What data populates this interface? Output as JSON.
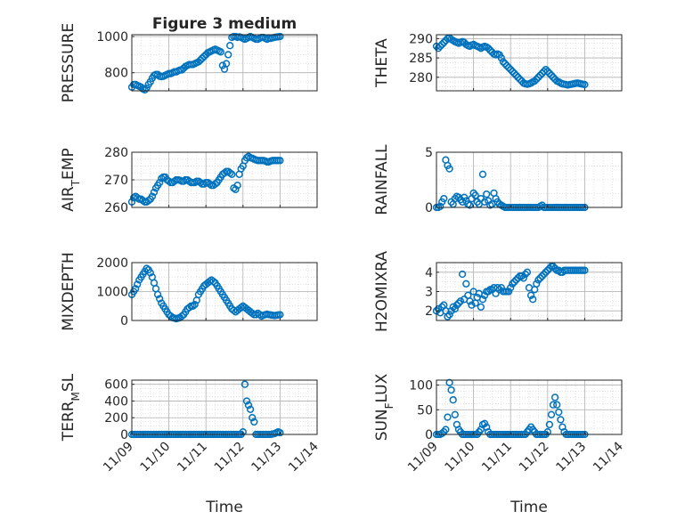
{
  "figure": {
    "title": "Figure 3 medium",
    "colors": {
      "marker": "#0072BD",
      "axis": "#262626",
      "grid": "#b0b0b0"
    }
  },
  "x_axis": {
    "label": "Time",
    "ticks": [
      "11/09",
      "11/10",
      "11/11",
      "11/12",
      "11/13",
      "11/14"
    ]
  },
  "chart_data": [
    {
      "type": "scatter",
      "ylabel": "PRESSURE",
      "ylim": [
        700,
        1010
      ],
      "yticks": [
        800,
        1000
      ],
      "grid": true,
      "x": [
        0.0,
        0.05,
        0.1,
        0.15,
        0.2,
        0.25,
        0.3,
        0.35,
        0.4,
        0.45,
        0.5,
        0.55,
        0.6,
        0.65,
        0.7,
        0.75,
        0.8,
        0.85,
        0.9,
        0.95,
        1.0,
        1.05,
        1.1,
        1.15,
        1.2,
        1.25,
        1.3,
        1.35,
        1.4,
        1.45,
        1.5,
        1.55,
        1.6,
        1.65,
        1.7,
        1.75,
        1.8,
        1.85,
        1.9,
        1.95,
        2.0,
        2.05,
        2.1,
        2.15,
        2.2,
        2.25,
        2.3,
        2.35,
        2.4,
        2.45,
        2.5,
        2.55,
        2.6,
        2.65,
        2.7,
        2.75,
        2.8,
        2.85,
        2.9,
        2.95,
        3.0,
        3.05,
        3.1,
        3.15,
        3.2,
        3.25,
        3.3,
        3.35,
        3.4,
        3.45,
        3.5,
        3.55,
        3.6,
        3.65,
        3.7,
        3.75,
        3.8,
        3.85,
        3.9,
        3.95,
        4.0
      ],
      "y": [
        720,
        735,
        735,
        730,
        725,
        720,
        710,
        705,
        715,
        735,
        750,
        770,
        785,
        790,
        790,
        780,
        778,
        780,
        785,
        790,
        795,
        795,
        800,
        805,
        805,
        810,
        815,
        815,
        825,
        835,
        840,
        845,
        845,
        845,
        850,
        855,
        860,
        870,
        880,
        890,
        900,
        910,
        915,
        920,
        925,
        930,
        925,
        920,
        915,
        840,
        820,
        850,
        900,
        950,
        995,
        1000,
        1000,
        995,
        998,
        995,
        990,
        985,
        990,
        995,
        1000,
        995,
        990,
        985,
        985,
        990,
        995,
        995,
        990,
        985,
        990,
        990,
        993,
        995,
        997,
        998,
        1000
      ]
    },
    {
      "type": "scatter",
      "ylabel": "THETA",
      "ylim": [
        276.5,
        291
      ],
      "yticks": [
        280,
        285,
        290
      ],
      "grid": true,
      "x": [
        0.0,
        0.05,
        0.1,
        0.15,
        0.2,
        0.25,
        0.3,
        0.35,
        0.4,
        0.45,
        0.5,
        0.55,
        0.6,
        0.65,
        0.7,
        0.75,
        0.8,
        0.85,
        0.9,
        0.95,
        1.0,
        1.05,
        1.1,
        1.15,
        1.2,
        1.25,
        1.3,
        1.35,
        1.4,
        1.45,
        1.5,
        1.55,
        1.6,
        1.65,
        1.7,
        1.75,
        1.8,
        1.85,
        1.9,
        1.95,
        2.0,
        2.05,
        2.1,
        2.15,
        2.2,
        2.25,
        2.3,
        2.35,
        2.4,
        2.45,
        2.5,
        2.55,
        2.6,
        2.65,
        2.7,
        2.75,
        2.8,
        2.85,
        2.9,
        2.95,
        3.0,
        3.05,
        3.1,
        3.15,
        3.2,
        3.25,
        3.3,
        3.35,
        3.4,
        3.45,
        3.5,
        3.55,
        3.6,
        3.65,
        3.7,
        3.75,
        3.8,
        3.85,
        3.9,
        3.95,
        4.0
      ],
      "y": [
        288,
        287.5,
        288,
        288.5,
        289,
        289.5,
        290,
        290.2,
        289.8,
        289.5,
        289.2,
        289,
        288.8,
        289,
        289.2,
        289,
        288.5,
        288.2,
        288,
        288.3,
        288.5,
        288.2,
        288,
        287.8,
        287.5,
        287.8,
        288,
        287.8,
        287.5,
        287,
        286.5,
        286,
        285.8,
        286,
        285.8,
        285,
        284,
        283.5,
        283,
        282.5,
        282,
        281.5,
        281,
        280.5,
        280,
        279.5,
        279,
        278.5,
        278.3,
        278.2,
        278.3,
        278.5,
        278.8,
        279,
        279.5,
        280,
        280.5,
        281,
        281.5,
        282,
        281.5,
        281,
        280.5,
        280,
        279.5,
        279,
        278.8,
        278.5,
        278.3,
        278.2,
        278.1,
        278,
        278.1,
        278.2,
        278.3,
        278.4,
        278.5,
        278.4,
        278.3,
        278.2,
        278.1
      ]
    },
    {
      "type": "scatter",
      "ylabel": "AIR_TEMP",
      "ylim": [
        260,
        280
      ],
      "yticks": [
        260,
        270,
        280
      ],
      "grid": true,
      "x": [
        0.0,
        0.05,
        0.1,
        0.15,
        0.2,
        0.25,
        0.3,
        0.35,
        0.4,
        0.45,
        0.5,
        0.55,
        0.6,
        0.65,
        0.7,
        0.75,
        0.8,
        0.85,
        0.9,
        0.95,
        1.0,
        1.05,
        1.1,
        1.15,
        1.2,
        1.25,
        1.3,
        1.35,
        1.4,
        1.45,
        1.5,
        1.55,
        1.6,
        1.65,
        1.7,
        1.75,
        1.8,
        1.85,
        1.9,
        1.95,
        2.0,
        2.05,
        2.1,
        2.15,
        2.2,
        2.25,
        2.3,
        2.35,
        2.4,
        2.45,
        2.5,
        2.55,
        2.6,
        2.65,
        2.7,
        2.75,
        2.8,
        2.85,
        2.9,
        2.95,
        3.0,
        3.05,
        3.1,
        3.15,
        3.2,
        3.25,
        3.3,
        3.35,
        3.4,
        3.45,
        3.5,
        3.55,
        3.6,
        3.65,
        3.7,
        3.75,
        3.8,
        3.85,
        3.9,
        3.95,
        4.0
      ],
      "y": [
        262,
        263.5,
        264,
        263.5,
        263,
        263,
        262.5,
        262,
        262,
        262.5,
        263,
        264,
        265.5,
        267,
        268,
        269,
        270.5,
        271,
        271,
        270,
        269.5,
        269,
        269,
        269.5,
        270,
        270,
        269.8,
        269.5,
        269.5,
        270,
        270,
        269.5,
        269,
        269,
        269,
        269.5,
        269.5,
        269,
        268.5,
        268.5,
        269,
        269,
        268.5,
        268,
        268,
        268.5,
        269,
        270,
        271,
        272,
        272.5,
        273,
        273,
        272.5,
        272,
        267,
        266.5,
        268,
        272,
        274,
        275,
        277,
        278,
        278.5,
        278,
        277.8,
        277.5,
        277.2,
        277,
        277,
        277,
        277,
        276.8,
        276.5,
        276.5,
        276.8,
        277,
        277,
        277,
        277,
        277
      ]
    },
    {
      "type": "scatter",
      "ylabel": "RAINFALL",
      "ylim": [
        0,
        5
      ],
      "yticks": [
        0,
        5
      ],
      "grid": true,
      "x": [
        0.0,
        0.05,
        0.1,
        0.15,
        0.2,
        0.25,
        0.3,
        0.35,
        0.4,
        0.45,
        0.5,
        0.55,
        0.6,
        0.65,
        0.7,
        0.75,
        0.8,
        0.85,
        0.9,
        0.95,
        1.0,
        1.05,
        1.1,
        1.15,
        1.2,
        1.25,
        1.3,
        1.35,
        1.4,
        1.45,
        1.5,
        1.55,
        1.6,
        1.65,
        1.7,
        1.75,
        1.8,
        1.85,
        1.9,
        1.95,
        2.0,
        2.05,
        2.1,
        2.15,
        2.2,
        2.25,
        2.3,
        2.35,
        2.4,
        2.45,
        2.5,
        2.55,
        2.6,
        2.65,
        2.7,
        2.75,
        2.8,
        2.85,
        2.9,
        2.95,
        3.0,
        3.05,
        3.1,
        3.15,
        3.2,
        3.25,
        3.3,
        3.35,
        3.4,
        3.45,
        3.5,
        3.55,
        3.6,
        3.65,
        3.7,
        3.75,
        3.8,
        3.85,
        3.9,
        3.95,
        4.0
      ],
      "y": [
        0,
        0,
        0.1,
        0.5,
        0.8,
        4.3,
        3.8,
        3.5,
        0.5,
        0.3,
        0.8,
        1,
        0.9,
        0.7,
        0.5,
        0.9,
        0.6,
        0.3,
        0.2,
        0.8,
        1.3,
        1.1,
        0.5,
        0.3,
        0.8,
        3,
        0.5,
        1.2,
        0.6,
        0.2,
        0.3,
        1.3,
        0.8,
        0.5,
        0.3,
        0.2,
        0.1,
        0,
        0,
        0,
        0,
        0,
        0,
        0,
        0,
        0,
        0,
        0,
        0,
        0,
        0,
        0,
        0,
        0,
        0,
        0,
        0.1,
        0.2,
        0,
        0,
        0,
        0,
        0,
        0,
        0,
        0,
        0,
        0,
        0,
        0,
        0,
        0,
        0,
        0,
        0,
        0,
        0,
        0,
        0,
        0,
        0
      ]
    },
    {
      "type": "scatter",
      "ylabel": "MIXDEPTH",
      "ylim": [
        0,
        2000
      ],
      "yticks": [
        0,
        1000,
        2000
      ],
      "grid": true,
      "x": [
        0.0,
        0.05,
        0.1,
        0.15,
        0.2,
        0.25,
        0.3,
        0.35,
        0.4,
        0.45,
        0.5,
        0.55,
        0.6,
        0.65,
        0.7,
        0.75,
        0.8,
        0.85,
        0.9,
        0.95,
        1.0,
        1.05,
        1.1,
        1.15,
        1.2,
        1.25,
        1.3,
        1.35,
        1.4,
        1.45,
        1.5,
        1.55,
        1.6,
        1.65,
        1.7,
        1.75,
        1.8,
        1.85,
        1.9,
        1.95,
        2.0,
        2.05,
        2.1,
        2.15,
        2.2,
        2.25,
        2.3,
        2.35,
        2.4,
        2.45,
        2.5,
        2.55,
        2.6,
        2.65,
        2.7,
        2.75,
        2.8,
        2.85,
        2.9,
        2.95,
        3.0,
        3.05,
        3.1,
        3.15,
        3.2,
        3.25,
        3.3,
        3.35,
        3.4,
        3.45,
        3.5,
        3.55,
        3.6,
        3.65,
        3.7,
        3.75,
        3.8,
        3.85,
        3.9,
        3.95,
        4.0
      ],
      "y": [
        900,
        1000,
        1100,
        1250,
        1400,
        1500,
        1600,
        1700,
        1800,
        1750,
        1650,
        1500,
        1300,
        1100,
        900,
        750,
        600,
        500,
        400,
        300,
        200,
        150,
        100,
        80,
        60,
        80,
        100,
        150,
        200,
        300,
        400,
        450,
        500,
        500,
        550,
        700,
        900,
        1000,
        1100,
        1200,
        1250,
        1300,
        1350,
        1400,
        1350,
        1300,
        1200,
        1100,
        1000,
        900,
        800,
        700,
        600,
        500,
        400,
        350,
        300,
        350,
        400,
        450,
        500,
        450,
        400,
        350,
        300,
        250,
        200,
        200,
        250,
        200,
        150,
        180,
        200,
        220,
        200,
        190,
        180,
        170,
        180,
        190,
        200
      ]
    },
    {
      "type": "scatter",
      "ylabel": "H2OMIXRA",
      "ylim": [
        1.5,
        4.5
      ],
      "yticks": [
        2,
        3,
        4
      ],
      "grid": true,
      "x": [
        0.0,
        0.05,
        0.1,
        0.15,
        0.2,
        0.25,
        0.3,
        0.35,
        0.4,
        0.45,
        0.5,
        0.55,
        0.6,
        0.65,
        0.7,
        0.75,
        0.8,
        0.85,
        0.9,
        0.95,
        1.0,
        1.05,
        1.1,
        1.15,
        1.2,
        1.25,
        1.3,
        1.35,
        1.4,
        1.45,
        1.5,
        1.55,
        1.6,
        1.65,
        1.7,
        1.75,
        1.8,
        1.85,
        1.9,
        1.95,
        2.0,
        2.05,
        2.1,
        2.15,
        2.2,
        2.25,
        2.3,
        2.35,
        2.4,
        2.45,
        2.5,
        2.55,
        2.6,
        2.65,
        2.7,
        2.75,
        2.8,
        2.85,
        2.9,
        2.95,
        3.0,
        3.05,
        3.1,
        3.15,
        3.2,
        3.25,
        3.3,
        3.35,
        3.4,
        3.45,
        3.5,
        3.55,
        3.6,
        3.65,
        3.7,
        3.75,
        3.8,
        3.85,
        3.9,
        3.95,
        4.0
      ],
      "y": [
        2,
        2.1,
        1.9,
        2.2,
        2.3,
        2,
        1.7,
        1.8,
        2,
        2.2,
        2.1,
        2.3,
        2.4,
        2.5,
        3.9,
        2.6,
        3.4,
        2.8,
        2.5,
        2.3,
        3,
        2.4,
        2.7,
        2.9,
        2.2,
        2.6,
        2.8,
        3,
        3,
        3.1,
        3.1,
        3.2,
        2.9,
        3.2,
        3.1,
        3.2,
        3,
        3,
        3,
        3,
        3.2,
        3.4,
        3.5,
        3.6,
        3.7,
        3.8,
        3.8,
        3.7,
        3.9,
        4,
        3.2,
        2.8,
        2.6,
        3.1,
        3.4,
        3.6,
        3.7,
        3.8,
        3.9,
        4,
        4.1,
        4.2,
        4.3,
        4.3,
        4.2,
        4.1,
        4.1,
        4,
        4,
        4.1,
        4.1,
        4.1,
        4.1,
        4.1,
        4.1,
        4.1,
        4.1,
        4.1,
        4.1,
        4.1,
        4.1
      ]
    },
    {
      "type": "scatter",
      "ylabel": "TERR_MSL",
      "ylim": [
        0,
        650
      ],
      "yticks": [
        0,
        200,
        400,
        600
      ],
      "grid": true,
      "x": [
        0.0,
        0.05,
        0.1,
        0.15,
        0.2,
        0.25,
        0.3,
        0.35,
        0.4,
        0.45,
        0.5,
        0.55,
        0.6,
        0.65,
        0.7,
        0.75,
        0.8,
        0.85,
        0.9,
        0.95,
        1.0,
        1.05,
        1.1,
        1.15,
        1.2,
        1.25,
        1.3,
        1.35,
        1.4,
        1.45,
        1.5,
        1.55,
        1.6,
        1.65,
        1.7,
        1.75,
        1.8,
        1.85,
        1.9,
        1.95,
        2.0,
        2.05,
        2.1,
        2.15,
        2.2,
        2.25,
        2.3,
        2.35,
        2.4,
        2.45,
        2.5,
        2.55,
        2.6,
        2.65,
        2.7,
        2.75,
        2.8,
        2.85,
        2.9,
        2.95,
        3.0,
        3.05,
        3.1,
        3.15,
        3.2,
        3.25,
        3.3,
        3.35,
        3.4,
        3.45,
        3.5,
        3.55,
        3.6,
        3.65,
        3.7,
        3.75,
        3.8,
        3.85,
        3.9,
        3.95,
        4.0
      ],
      "y": [
        0,
        0,
        0,
        0,
        0,
        0,
        0,
        0,
        0,
        0,
        0,
        0,
        0,
        0,
        0,
        0,
        0,
        0,
        0,
        0,
        0,
        0,
        0,
        0,
        0,
        0,
        0,
        0,
        0,
        0,
        0,
        0,
        0,
        0,
        0,
        0,
        0,
        0,
        0,
        0,
        0,
        0,
        0,
        0,
        0,
        0,
        0,
        0,
        0,
        0,
        0,
        0,
        0,
        0,
        0,
        0,
        0,
        0,
        0,
        0,
        30,
        600,
        400,
        350,
        300,
        200,
        150,
        0,
        0,
        0,
        0,
        0,
        0,
        0,
        0,
        0,
        5,
        10,
        20,
        30,
        20
      ]
    },
    {
      "type": "scatter",
      "ylabel": "SUN_FLUX",
      "ylim": [
        0,
        110
      ],
      "yticks": [
        0,
        50,
        100
      ],
      "grid": true,
      "x": [
        0.0,
        0.05,
        0.1,
        0.15,
        0.2,
        0.25,
        0.3,
        0.35,
        0.4,
        0.45,
        0.5,
        0.55,
        0.6,
        0.65,
        0.7,
        0.75,
        0.8,
        0.85,
        0.9,
        0.95,
        1.0,
        1.05,
        1.1,
        1.15,
        1.2,
        1.25,
        1.3,
        1.35,
        1.4,
        1.45,
        1.5,
        1.55,
        1.6,
        1.65,
        1.7,
        1.75,
        1.8,
        1.85,
        1.9,
        1.95,
        2.0,
        2.05,
        2.1,
        2.15,
        2.2,
        2.25,
        2.3,
        2.35,
        2.4,
        2.45,
        2.5,
        2.55,
        2.6,
        2.65,
        2.7,
        2.75,
        2.8,
        2.85,
        2.9,
        2.95,
        3.0,
        3.05,
        3.1,
        3.15,
        3.2,
        3.25,
        3.3,
        3.35,
        3.4,
        3.45,
        3.5,
        3.55,
        3.6,
        3.65,
        3.7,
        3.75,
        3.8,
        3.85,
        3.9,
        3.95,
        4.0
      ],
      "y": [
        0,
        0,
        0,
        2,
        5,
        10,
        35,
        105,
        90,
        70,
        40,
        20,
        10,
        5,
        0,
        0,
        0,
        0,
        0,
        0,
        0,
        0,
        0,
        5,
        10,
        20,
        22,
        15,
        5,
        0,
        0,
        0,
        0,
        0,
        0,
        0,
        0,
        0,
        0,
        0,
        0,
        0,
        0,
        0,
        0,
        0,
        0,
        0,
        0,
        5,
        10,
        15,
        10,
        5,
        0,
        0,
        0,
        0,
        0,
        0,
        5,
        20,
        40,
        60,
        75,
        60,
        45,
        30,
        15,
        5,
        0,
        0,
        0,
        0,
        0,
        0,
        0,
        0,
        0,
        0,
        0
      ]
    }
  ]
}
